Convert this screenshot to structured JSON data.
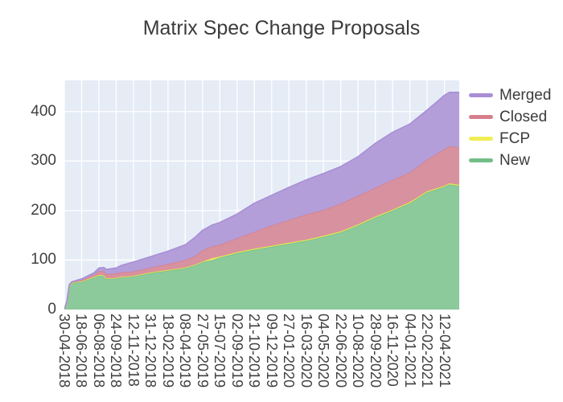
{
  "chart_data": {
    "type": "area",
    "stacked": true,
    "title": "Matrix Spec Change Proposals",
    "xlabel": "",
    "ylabel": "",
    "grid": true,
    "legend_position": "right",
    "legend": [
      {
        "label": "Merged",
        "color": "#a98ed6"
      },
      {
        "label": "Closed",
        "color": "#d5808d"
      },
      {
        "label": "FCP",
        "color": "#f0ee55"
      },
      {
        "label": "New",
        "color": "#72bf88"
      }
    ],
    "y_ticks": [
      0,
      100,
      200,
      300,
      400
    ],
    "ylim": [
      0,
      463
    ],
    "x_tick_labels": [
      "30-04-2018",
      "18-06-2018",
      "06-08-2018",
      "24-09-2018",
      "12-11-2018",
      "31-12-2018",
      "18-02-2019",
      "08-04-2019",
      "27-05-2019",
      "15-07-2019",
      "02-09-2019",
      "21-10-2019",
      "09-12-2019",
      "27-01-2020",
      "16-03-2020",
      "04-05-2020",
      "22-06-2020",
      "10-08-2020",
      "28-09-2020",
      "16-11-2020",
      "04-01-2021",
      "22-02-2021",
      "12-04-2021"
    ],
    "x_tick_step_days": 49,
    "xlim_days": [
      0,
      1120
    ],
    "x_dates": [
      "30-04-2018",
      "07-05-2018",
      "14-05-2018",
      "21-05-2018",
      "04-06-2018",
      "18-06-2018",
      "23-07-2018",
      "06-08-2018",
      "20-08-2018",
      "27-08-2018",
      "24-09-2018",
      "08-10-2018",
      "12-11-2018",
      "31-12-2018",
      "18-02-2019",
      "08-04-2019",
      "06-05-2019",
      "27-05-2019",
      "24-06-2019",
      "15-07-2019",
      "02-09-2019",
      "21-10-2019",
      "09-12-2019",
      "27-01-2020",
      "16-03-2020",
      "04-05-2020",
      "22-06-2020",
      "10-08-2020",
      "28-09-2020",
      "16-11-2020",
      "04-01-2021",
      "22-02-2021",
      "12-04-2021",
      "26-04-2021",
      "24-05-2021"
    ],
    "x_days": [
      0,
      7,
      14,
      21,
      35,
      49,
      84,
      98,
      112,
      119,
      147,
      161,
      196,
      245,
      294,
      343,
      371,
      392,
      420,
      441,
      490,
      539,
      588,
      637,
      686,
      735,
      784,
      833,
      882,
      931,
      980,
      1029,
      1078,
      1092,
      1120
    ],
    "series": [
      {
        "name": "New",
        "line_color": "#72bf88",
        "fill_color": "#8cc99b",
        "values": [
          1,
          15,
          48,
          53,
          55,
          56,
          65,
          69,
          68,
          62,
          63,
          65,
          67,
          74,
          79,
          84,
          90,
          96,
          100,
          105,
          114,
          121,
          127,
          133,
          139,
          147,
          156,
          170,
          186,
          200,
          215,
          237,
          248,
          253,
          250
        ]
      },
      {
        "name": "FCP",
        "line_color": "#e9e64a",
        "fill_color": "#f2ef6a",
        "values": [
          0,
          0,
          0,
          1,
          1,
          1,
          1,
          1,
          1,
          1,
          1,
          1,
          1,
          1,
          1,
          1,
          1,
          1,
          4,
          2,
          2,
          2,
          2,
          2,
          2,
          2,
          2,
          2,
          2,
          2,
          2,
          2,
          2,
          2,
          2
        ]
      },
      {
        "name": "Closed",
        "line_color": "#d5808d",
        "fill_color": "#d8919e",
        "values": [
          0,
          1,
          1,
          1,
          1,
          2,
          4,
          8,
          8,
          9,
          9,
          9,
          9,
          10,
          12,
          15,
          17,
          23,
          24,
          24,
          28,
          34,
          41,
          46,
          51,
          52,
          56,
          58,
          58,
          60,
          60,
          64,
          74,
          75,
          76
        ]
      },
      {
        "name": "Merged",
        "line_color": "#a98ed6",
        "fill_color": "#b39ed9",
        "values": [
          0,
          0,
          1,
          1,
          2,
          3,
          4,
          6,
          8,
          9,
          11,
          14,
          19,
          22,
          26,
          31,
          38,
          40,
          43,
          45,
          49,
          58,
          61,
          66,
          70,
          74,
          75,
          79,
          90,
          96,
          98,
          100,
          109,
          109,
          111
        ]
      }
    ],
    "colors": {
      "figure_bg": "#ffffff",
      "plot_bg": "#e5ecf6",
      "grid": "#ffffff",
      "text": "#3b3b3b"
    }
  }
}
